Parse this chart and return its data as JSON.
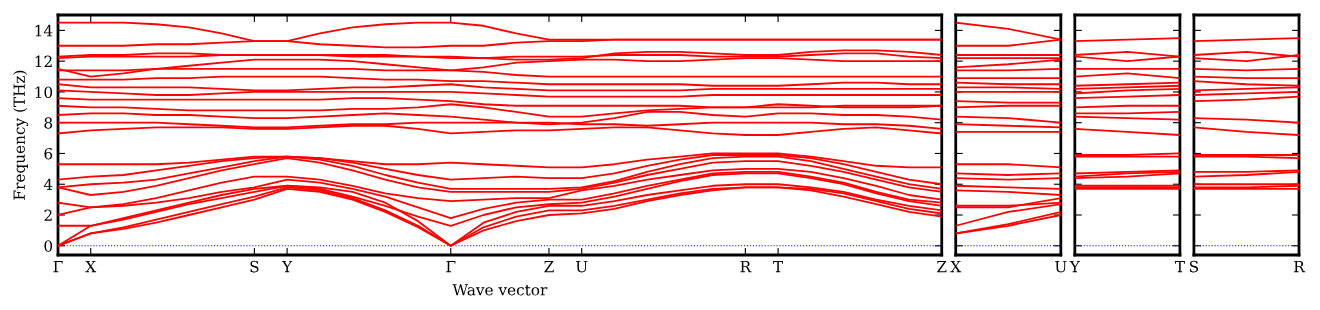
{
  "chart_data": [
    {
      "type": "line",
      "ylabel": "Frequency (THz)",
      "xlabel": "Wave vector",
      "marker": "none",
      "line_style": "solid",
      "categories": [
        "Γ",
        "X",
        null,
        null,
        null,
        null,
        "S",
        "Y",
        null,
        null,
        null,
        null,
        "Γ",
        null,
        null,
        "Z",
        "U",
        null,
        null,
        null,
        null,
        "R",
        "T",
        null,
        null,
        null,
        null,
        "Z"
      ],
      "ylim": [
        -0.6,
        15.0
      ],
      "yticks": [
        0,
        2,
        4,
        6,
        8,
        10,
        12,
        14
      ],
      "ref_lines": [
        {
          "axis": "y",
          "value": 0,
          "color": "#0000ff",
          "line_style": "dotted"
        }
      ],
      "series": [
        {
          "color": "#ff0000",
          "values": [
            0,
            0.8,
            1.1,
            1.5,
            2.0,
            2.5,
            3.0,
            3.7,
            3.5,
            3.0,
            2.2,
            1.2,
            0,
            1.0,
            1.6,
            2.0,
            2.1,
            2.4,
            2.9,
            3.3,
            3.6,
            3.8,
            3.8,
            3.6,
            3.2,
            2.7,
            2.2,
            1.9
          ]
        },
        {
          "color": "#ff0000",
          "values": [
            0,
            0.8,
            1.2,
            1.7,
            2.2,
            2.7,
            3.2,
            3.8,
            3.6,
            3.1,
            2.3,
            1.3,
            0,
            1.2,
            1.9,
            2.3,
            2.3,
            2.6,
            3.0,
            3.4,
            3.7,
            3.8,
            3.8,
            3.7,
            3.4,
            2.9,
            2.4,
            2.1
          ]
        },
        {
          "color": "#ff0000",
          "values": [
            0,
            1.3,
            1.7,
            2.2,
            2.7,
            3.1,
            3.5,
            3.9,
            3.8,
            3.5,
            2.8,
            1.6,
            0,
            1.5,
            2.2,
            2.6,
            2.6,
            2.9,
            3.3,
            3.6,
            3.9,
            4.0,
            4.0,
            3.8,
            3.5,
            3.0,
            2.6,
            2.3
          ]
        },
        {
          "color": "#ff0000",
          "values": [
            1.3,
            1.3,
            1.8,
            2.3,
            2.8,
            3.3,
            3.7,
            3.9,
            3.7,
            3.2,
            2.6,
            1.9,
            1.3,
            2.0,
            2.5,
            2.7,
            2.8,
            3.2,
            3.7,
            4.2,
            4.6,
            4.7,
            4.7,
            4.4,
            4.0,
            3.4,
            2.9,
            2.6
          ]
        },
        {
          "color": "#ff0000",
          "values": [
            2.0,
            2.5,
            2.6,
            2.8,
            3.1,
            3.5,
            3.8,
            4.3,
            4.1,
            3.7,
            3.2,
            2.5,
            1.8,
            2.4,
            2.8,
            3.0,
            3.0,
            3.4,
            3.9,
            4.3,
            4.7,
            4.8,
            4.8,
            4.5,
            4.1,
            3.5,
            3.0,
            2.8
          ]
        },
        {
          "color": "#ff0000",
          "values": [
            2.8,
            2.5,
            2.7,
            3.1,
            3.6,
            4.1,
            4.5,
            4.5,
            4.3,
            3.9,
            3.4,
            3.1,
            2.9,
            3.0,
            3.1,
            3.1,
            3.6,
            3.9,
            4.3,
            4.6,
            4.9,
            5.0,
            5.0,
            4.8,
            4.4,
            3.9,
            3.3,
            3.0
          ]
        },
        {
          "color": "#ff0000",
          "values": [
            3.8,
            3.3,
            3.5,
            3.9,
            4.4,
            4.9,
            5.3,
            5.7,
            5.4,
            4.9,
            4.3,
            3.8,
            3.5,
            3.5,
            3.5,
            3.5,
            3.7,
            4.1,
            4.6,
            5.0,
            5.4,
            5.5,
            5.5,
            5.2,
            4.8,
            4.3,
            3.8,
            3.5
          ]
        },
        {
          "color": "#ff0000",
          "values": [
            3.8,
            4.0,
            4.1,
            4.3,
            4.7,
            5.1,
            5.5,
            5.8,
            5.6,
            5.2,
            4.6,
            4.1,
            3.7,
            3.7,
            3.7,
            3.7,
            3.8,
            4.2,
            4.8,
            5.3,
            5.7,
            5.8,
            5.8,
            5.5,
            5.0,
            4.5,
            4.0,
            3.7
          ]
        },
        {
          "color": "#ff0000",
          "values": [
            4.3,
            4.5,
            4.6,
            4.9,
            5.2,
            5.5,
            5.7,
            5.8,
            5.7,
            5.4,
            5.0,
            4.6,
            4.3,
            4.4,
            4.5,
            4.4,
            4.4,
            4.7,
            5.2,
            5.6,
            5.9,
            5.9,
            5.9,
            5.7,
            5.3,
            4.8,
            4.3,
            4.0
          ]
        },
        {
          "color": "#ff0000",
          "values": [
            5.3,
            5.3,
            5.3,
            5.3,
            5.4,
            5.6,
            5.8,
            5.8,
            5.7,
            5.5,
            5.3,
            5.3,
            5.4,
            5.3,
            5.2,
            5.1,
            5.1,
            5.3,
            5.6,
            5.8,
            6.0,
            6.0,
            6.0,
            5.8,
            5.5,
            5.2,
            5.1,
            5.1
          ]
        },
        {
          "color": "#ff0000",
          "values": [
            7.3,
            7.5,
            7.6,
            7.7,
            7.7,
            7.7,
            7.6,
            7.6,
            7.7,
            7.8,
            7.8,
            7.6,
            7.3,
            7.4,
            7.5,
            7.5,
            7.6,
            7.7,
            7.7,
            7.5,
            7.3,
            7.2,
            7.2,
            7.4,
            7.6,
            7.7,
            7.5,
            7.3
          ]
        },
        {
          "color": "#ff0000",
          "values": [
            8.0,
            8.0,
            8.0,
            8.0,
            7.9,
            7.8,
            7.7,
            7.7,
            7.8,
            7.9,
            7.9,
            8.0,
            8.0,
            8.0,
            8.0,
            8.0,
            7.9,
            7.9,
            7.8,
            7.9,
            8.0,
            8.0,
            8.0,
            8.0,
            7.9,
            7.9,
            7.8,
            7.6
          ]
        },
        {
          "color": "#ff0000",
          "values": [
            8.5,
            8.6,
            8.6,
            8.5,
            8.5,
            8.4,
            8.3,
            8.3,
            8.4,
            8.5,
            8.6,
            8.5,
            8.4,
            8.2,
            8.0,
            7.9,
            8.0,
            8.3,
            8.7,
            8.7,
            8.5,
            8.4,
            8.6,
            8.6,
            8.5,
            8.5,
            8.4,
            8.2
          ]
        },
        {
          "color": "#ff0000",
          "values": [
            9.1,
            9.0,
            9.0,
            8.9,
            8.8,
            8.8,
            8.8,
            8.8,
            8.8,
            8.9,
            8.9,
            9.0,
            9.2,
            9.0,
            8.7,
            8.4,
            8.4,
            8.6,
            8.8,
            8.9,
            9.0,
            9.0,
            9.0,
            9.0,
            9.1,
            9.1,
            9.1,
            9.1
          ]
        },
        {
          "color": "#ff0000",
          "values": [
            9.6,
            9.5,
            9.5,
            9.5,
            9.5,
            9.5,
            9.5,
            9.5,
            9.5,
            9.6,
            9.6,
            9.5,
            9.4,
            9.2,
            9.1,
            9.1,
            9.1,
            9.1,
            9.1,
            9.1,
            9.0,
            9.0,
            9.2,
            9.1,
            9.0,
            9.0,
            9.0,
            9.1
          ]
        },
        {
          "color": "#ff0000",
          "values": [
            10.1,
            10.0,
            9.9,
            9.8,
            9.8,
            9.9,
            10.0,
            10.0,
            10.0,
            10.0,
            10.0,
            10.0,
            10.0,
            9.9,
            9.8,
            9.7,
            9.7,
            9.7,
            9.7,
            9.7,
            9.8,
            9.8,
            9.8,
            9.8,
            9.8,
            9.8,
            9.8,
            9.8
          ]
        },
        {
          "color": "#ff0000",
          "values": [
            10.5,
            10.3,
            10.3,
            10.3,
            10.3,
            10.2,
            10.1,
            10.1,
            10.2,
            10.3,
            10.3,
            10.4,
            10.5,
            10.3,
            10.2,
            10.1,
            10.1,
            10.1,
            10.1,
            10.1,
            10.2,
            10.2,
            10.2,
            10.2,
            10.2,
            10.2,
            10.2,
            10.2
          ]
        },
        {
          "color": "#ff0000",
          "values": [
            10.8,
            10.8,
            10.8,
            10.9,
            10.9,
            11.0,
            11.0,
            11.0,
            11.0,
            10.9,
            10.8,
            10.8,
            10.7,
            10.7,
            10.6,
            10.5,
            10.5,
            10.5,
            10.5,
            10.5,
            10.4,
            10.4,
            10.4,
            10.5,
            10.6,
            10.6,
            10.5,
            10.5
          ]
        },
        {
          "color": "#ff0000",
          "values": [
            11.4,
            11.4,
            11.4,
            11.5,
            11.5,
            11.5,
            11.5,
            11.5,
            11.5,
            11.5,
            11.4,
            11.4,
            11.4,
            11.3,
            11.1,
            11.0,
            11.0,
            11.0,
            11.0,
            11.0,
            11.0,
            11.0,
            11.0,
            11.0,
            11.0,
            11.0,
            11.0,
            11.0
          ]
        },
        {
          "color": "#ff0000",
          "values": [
            11.5,
            11.0,
            11.2,
            11.5,
            11.7,
            11.9,
            12.1,
            12.1,
            12.1,
            12.0,
            11.8,
            11.6,
            11.4,
            11.6,
            11.9,
            12.0,
            12.1,
            12.1,
            12.0,
            12.0,
            12.1,
            12.2,
            12.2,
            12.1,
            12.0,
            12.0,
            12.0,
            12.0
          ]
        },
        {
          "color": "#ff0000",
          "values": [
            12.2,
            12.3,
            12.3,
            12.3,
            12.3,
            12.4,
            12.4,
            12.4,
            12.4,
            12.3,
            12.3,
            12.3,
            12.2,
            12.2,
            12.3,
            12.3,
            12.3,
            12.4,
            12.4,
            12.4,
            12.3,
            12.3,
            12.3,
            12.4,
            12.5,
            12.5,
            12.3,
            12.2
          ]
        },
        {
          "color": "#ff0000",
          "values": [
            12.3,
            12.4,
            12.4,
            12.5,
            12.5,
            12.4,
            12.4,
            12.4,
            12.4,
            12.4,
            12.4,
            12.3,
            12.3,
            12.2,
            12.1,
            12.1,
            12.2,
            12.5,
            12.6,
            12.6,
            12.5,
            12.4,
            12.4,
            12.6,
            12.7,
            12.7,
            12.6,
            12.4
          ]
        },
        {
          "color": "#ff0000",
          "values": [
            13.0,
            13.0,
            13.0,
            13.1,
            13.1,
            13.2,
            13.3,
            13.3,
            13.1,
            13.0,
            12.9,
            12.9,
            13.0,
            13.0,
            13.2,
            13.3,
            13.3,
            13.4,
            13.4,
            13.4,
            13.4,
            13.4,
            13.4,
            13.4,
            13.4,
            13.4,
            13.4,
            13.4
          ]
        },
        {
          "color": "#ff0000",
          "values": [
            14.5,
            14.5,
            14.5,
            14.4,
            14.2,
            13.8,
            13.3,
            13.3,
            13.8,
            14.2,
            14.4,
            14.5,
            14.5,
            14.3,
            13.8,
            13.4,
            13.4,
            13.4,
            13.4,
            13.4,
            13.4,
            13.4,
            13.4,
            13.4,
            13.4,
            13.4,
            13.4,
            13.4
          ]
        }
      ]
    },
    {
      "type": "line",
      "marker": "none",
      "line_style": "solid",
      "tick_labels": "x",
      "categories": [
        "X",
        null,
        "U"
      ],
      "ylim": [
        -0.6,
        15.0
      ],
      "yticks": [
        0,
        2,
        4,
        6,
        8,
        10,
        12,
        14
      ],
      "ref_lines": [
        {
          "axis": "y",
          "value": 0,
          "color": "#0000ff",
          "line_style": "dotted"
        }
      ],
      "series": [
        {
          "color": "#ff0000",
          "values": [
            14.5,
            14.1,
            13.4
          ]
        },
        {
          "color": "#ff0000",
          "values": [
            13.0,
            13.0,
            13.4
          ]
        },
        {
          "color": "#ff0000",
          "values": [
            12.4,
            12.4,
            12.4
          ]
        },
        {
          "color": "#ff0000",
          "values": [
            12.2,
            12.2,
            12.2
          ]
        },
        {
          "color": "#ff0000",
          "values": [
            11.6,
            11.8,
            12.1
          ]
        },
        {
          "color": "#ff0000",
          "values": [
            11.4,
            11.4,
            11.5
          ]
        },
        {
          "color": "#ff0000",
          "values": [
            10.9,
            10.9,
            10.9
          ]
        },
        {
          "color": "#ff0000",
          "values": [
            10.6,
            10.5,
            10.5
          ]
        },
        {
          "color": "#ff0000",
          "values": [
            10.3,
            10.3,
            10.2
          ]
        },
        {
          "color": "#ff0000",
          "values": [
            10.0,
            10.0,
            10.0
          ]
        },
        {
          "color": "#ff0000",
          "values": [
            9.4,
            9.3,
            9.3
          ]
        },
        {
          "color": "#ff0000",
          "values": [
            9.0,
            9.1,
            9.1
          ]
        },
        {
          "color": "#ff0000",
          "values": [
            8.4,
            8.3,
            8.0
          ]
        },
        {
          "color": "#ff0000",
          "values": [
            7.9,
            7.8,
            7.7
          ]
        },
        {
          "color": "#ff0000",
          "values": [
            7.4,
            7.4,
            7.4
          ]
        },
        {
          "color": "#ff0000",
          "values": [
            5.3,
            5.3,
            5.1
          ]
        },
        {
          "color": "#ff0000",
          "values": [
            4.7,
            4.6,
            4.7
          ]
        },
        {
          "color": "#ff0000",
          "values": [
            4.4,
            4.3,
            4.4
          ]
        },
        {
          "color": "#ff0000",
          "values": [
            3.9,
            3.8,
            3.7
          ]
        },
        {
          "color": "#ff0000",
          "values": [
            3.6,
            3.5,
            3.3
          ]
        },
        {
          "color": "#ff0000",
          "values": [
            2.6,
            2.6,
            2.8
          ]
        },
        {
          "color": "#ff0000",
          "values": [
            2.5,
            2.5,
            3.1
          ]
        },
        {
          "color": "#ff0000",
          "values": [
            1.3,
            2.2,
            2.7
          ]
        },
        {
          "color": "#ff0000",
          "values": [
            0.8,
            1.4,
            2.2
          ]
        },
        {
          "color": "#ff0000",
          "values": [
            0.8,
            1.3,
            2.0
          ]
        }
      ]
    },
    {
      "type": "line",
      "marker": "none",
      "line_style": "solid",
      "tick_labels": "x",
      "categories": [
        "Y",
        null,
        "T"
      ],
      "ylim": [
        -0.6,
        15.0
      ],
      "yticks": [
        0,
        2,
        4,
        6,
        8,
        10,
        12,
        14
      ],
      "ref_lines": [
        {
          "axis": "y",
          "value": 0,
          "color": "#0000ff",
          "line_style": "dotted"
        }
      ],
      "series": [
        {
          "color": "#ff0000",
          "values": [
            13.3,
            13.4,
            13.5
          ]
        },
        {
          "color": "#ff0000",
          "values": [
            12.4,
            12.6,
            12.3
          ]
        },
        {
          "color": "#ff0000",
          "values": [
            12.3,
            12.0,
            12.3
          ]
        },
        {
          "color": "#ff0000",
          "values": [
            11.5,
            11.5,
            11.5
          ]
        },
        {
          "color": "#ff0000",
          "values": [
            11.0,
            11.2,
            10.9
          ]
        },
        {
          "color": "#ff0000",
          "values": [
            10.4,
            10.5,
            10.6
          ]
        },
        {
          "color": "#ff0000",
          "values": [
            10.2,
            10.3,
            10.4
          ]
        },
        {
          "color": "#ff0000",
          "values": [
            9.9,
            10.1,
            10.2
          ]
        },
        {
          "color": "#ff0000",
          "values": [
            9.6,
            9.7,
            9.8
          ]
        },
        {
          "color": "#ff0000",
          "values": [
            9.0,
            9.1,
            9.1
          ]
        },
        {
          "color": "#ff0000",
          "values": [
            8.6,
            8.6,
            8.7
          ]
        },
        {
          "color": "#ff0000",
          "values": [
            8.4,
            8.3,
            8.2
          ]
        },
        {
          "color": "#ff0000",
          "values": [
            7.6,
            7.4,
            7.2
          ]
        },
        {
          "color": "#ff0000",
          "values": [
            5.9,
            5.9,
            6.0
          ]
        },
        {
          "color": "#ff0000",
          "values": [
            5.8,
            5.8,
            5.8
          ]
        },
        {
          "color": "#ff0000",
          "values": [
            4.7,
            4.8,
            4.9
          ]
        },
        {
          "color": "#ff0000",
          "values": [
            4.5,
            4.7,
            4.8
          ]
        },
        {
          "color": "#ff0000",
          "values": [
            4.4,
            4.5,
            4.7
          ]
        },
        {
          "color": "#ff0000",
          "values": [
            3.9,
            3.9,
            3.9
          ]
        },
        {
          "color": "#ff0000",
          "values": [
            3.8,
            3.8,
            3.8
          ]
        },
        {
          "color": "#ff0000",
          "values": [
            3.7,
            3.7,
            3.7
          ]
        }
      ]
    },
    {
      "type": "line",
      "marker": "none",
      "line_style": "solid",
      "tick_labels": "x",
      "categories": [
        "S",
        null,
        "R"
      ],
      "ylim": [
        -0.6,
        15.0
      ],
      "yticks": [
        0,
        2,
        4,
        6,
        8,
        10,
        12,
        14
      ],
      "ref_lines": [
        {
          "axis": "y",
          "value": 0,
          "color": "#0000ff",
          "line_style": "dotted"
        }
      ],
      "series": [
        {
          "color": "#ff0000",
          "values": [
            13.3,
            13.4,
            13.5
          ]
        },
        {
          "color": "#ff0000",
          "values": [
            12.4,
            12.6,
            12.3
          ]
        },
        {
          "color": "#ff0000",
          "values": [
            12.2,
            12.0,
            12.4
          ]
        },
        {
          "color": "#ff0000",
          "values": [
            11.5,
            11.4,
            11.5
          ]
        },
        {
          "color": "#ff0000",
          "values": [
            11.0,
            10.9,
            10.9
          ]
        },
        {
          "color": "#ff0000",
          "values": [
            10.7,
            10.5,
            10.4
          ]
        },
        {
          "color": "#ff0000",
          "values": [
            10.1,
            10.2,
            10.3
          ]
        },
        {
          "color": "#ff0000",
          "values": [
            9.8,
            9.9,
            10.0
          ]
        },
        {
          "color": "#ff0000",
          "values": [
            9.4,
            9.5,
            9.7
          ]
        },
        {
          "color": "#ff0000",
          "values": [
            8.3,
            8.2,
            8.0
          ]
        },
        {
          "color": "#ff0000",
          "values": [
            7.7,
            7.4,
            7.2
          ]
        },
        {
          "color": "#ff0000",
          "values": [
            5.9,
            5.9,
            5.9
          ]
        },
        {
          "color": "#ff0000",
          "values": [
            5.8,
            5.8,
            5.7
          ]
        },
        {
          "color": "#ff0000",
          "values": [
            4.8,
            4.8,
            4.9
          ]
        },
        {
          "color": "#ff0000",
          "values": [
            4.5,
            4.6,
            4.8
          ]
        },
        {
          "color": "#ff0000",
          "values": [
            4.0,
            4.0,
            4.0
          ]
        },
        {
          "color": "#ff0000",
          "values": [
            3.8,
            3.8,
            3.9
          ]
        },
        {
          "color": "#ff0000",
          "values": [
            3.7,
            3.7,
            3.7
          ]
        }
      ]
    }
  ]
}
